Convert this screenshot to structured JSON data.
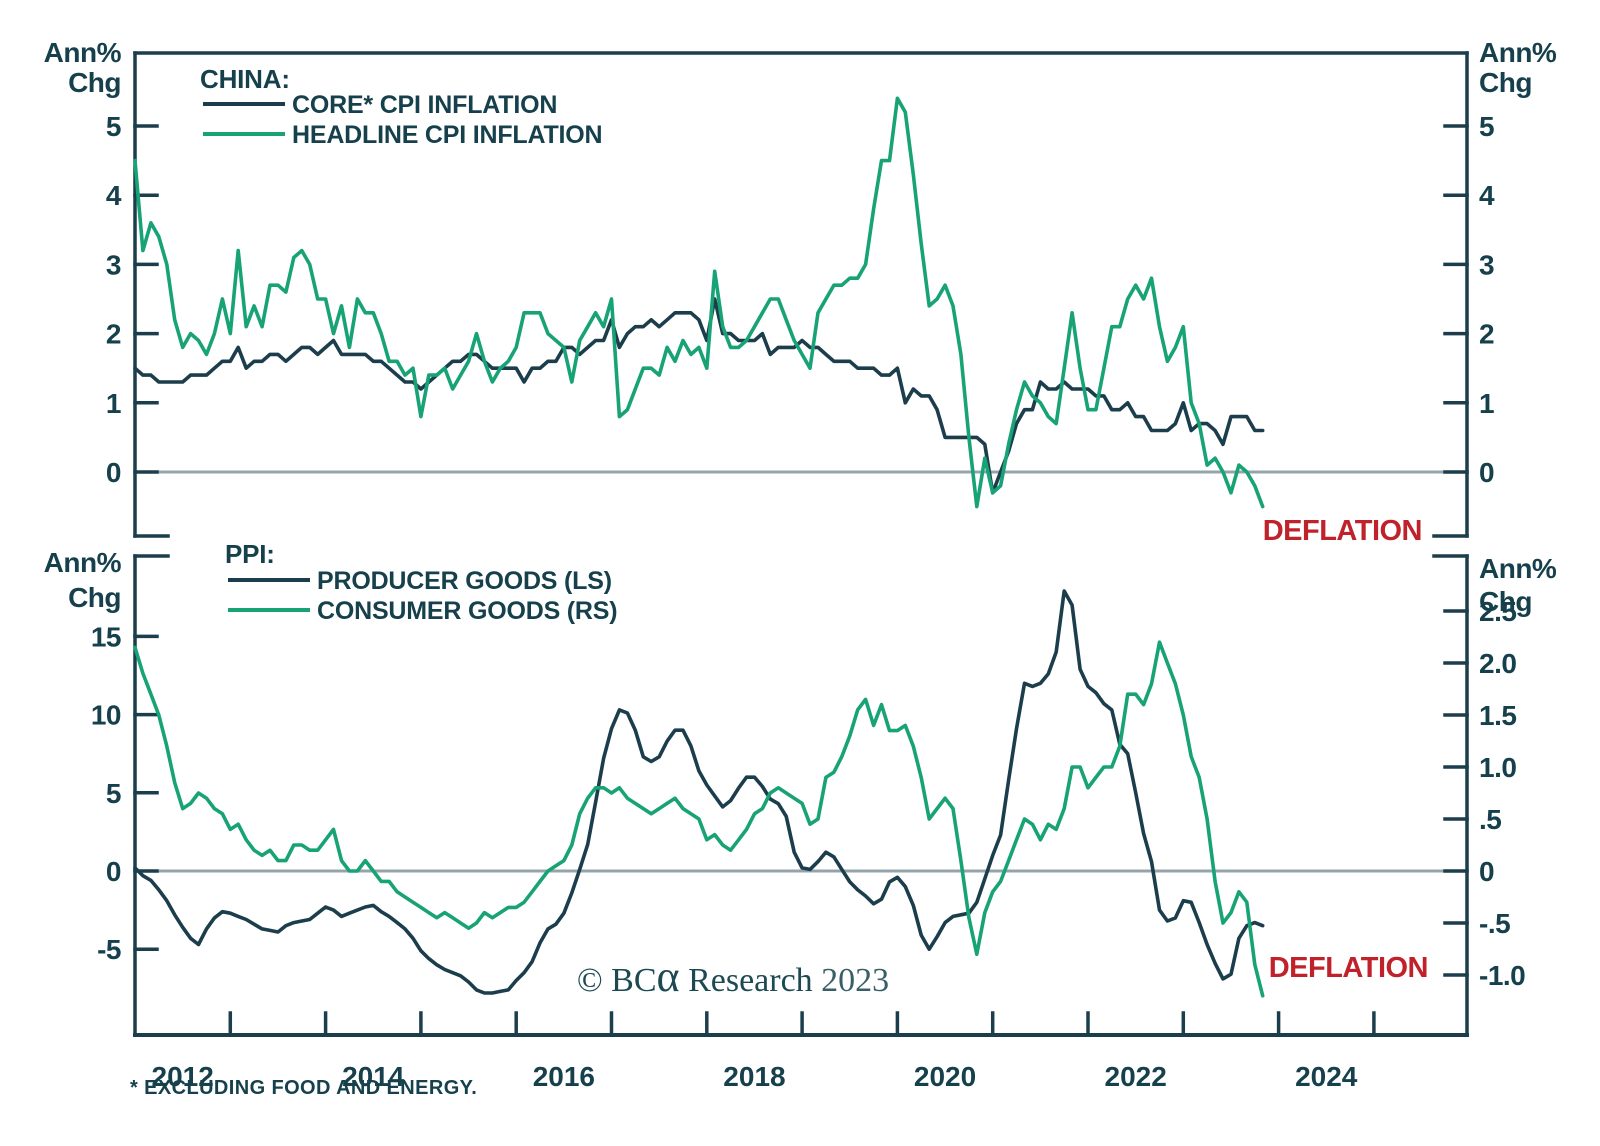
{
  "colors": {
    "dark": "#1C3E4C",
    "green": "#18A376",
    "red": "#C0222B",
    "grey_zero": "#95A4AB",
    "text": "#16404C",
    "watermark": "#1D4A52"
  },
  "top_panel": {
    "axis_left_title": [
      "Ann%",
      "Chg"
    ],
    "axis_right_title": [
      "Ann%",
      "Chg"
    ],
    "legend_title": "CHINA:",
    "deflation_label": "DEFLATION",
    "yticks": [
      {
        "label": "5",
        "value": 5
      },
      {
        "label": "4",
        "value": 4
      },
      {
        "label": "3",
        "value": 3
      },
      {
        "label": "2",
        "value": 2
      },
      {
        "label": "1",
        "value": 1
      },
      {
        "label": "0",
        "value": 0
      }
    ]
  },
  "bottom_panel": {
    "axis_left_title": [
      "Ann%",
      "Chg"
    ],
    "axis_right_title": [
      "Ann%",
      "Chg"
    ],
    "legend_title": "PPI:",
    "deflation_label": "DEFLATION",
    "watermark": {
      "prefix": "© BC",
      "alpha": "α",
      "rest": " Research ",
      "year": "2023"
    },
    "left_yticks": [
      {
        "label": "15",
        "value": 15
      },
      {
        "label": "10",
        "value": 10
      },
      {
        "label": "5",
        "value": 5
      },
      {
        "label": "0",
        "value": 0
      },
      {
        "label": "-5",
        "value": -5
      }
    ],
    "right_yticks": [
      {
        "label": "2.5",
        "value": 2.5
      },
      {
        "label": "2.0",
        "value": 2.0
      },
      {
        "label": "1.5",
        "value": 1.5
      },
      {
        "label": "1.0",
        "value": 1.0
      },
      {
        "label": ".5",
        "value": 0.5
      },
      {
        "label": "0",
        "value": 0
      },
      {
        "label": "-.5",
        "value": -0.5
      },
      {
        "label": "-1.0",
        "value": -1.0
      }
    ],
    "xtick_labels": [
      "2012",
      "2014",
      "2016",
      "2018",
      "2020",
      "2022",
      "2024"
    ]
  },
  "footnote": "* EXCLUDING FOOD AND ENERGY.",
  "chart_data": [
    {
      "type": "line",
      "title": "CHINA: CORE CPI INFLATION vs HEADLINE CPI INFLATION",
      "ylabel": "Ann% Chg",
      "x_start": "2012-01",
      "x_freq": "monthly",
      "xlim": [
        "2012-01",
        "2026-01"
      ],
      "ylim": [
        -0.8,
        6.05
      ],
      "yticks": [
        5,
        4,
        3,
        2,
        1,
        0
      ],
      "grid": "zero-line-only",
      "legend_position": "top-left",
      "annotations": [
        {
          "text": "DEFLATION",
          "position": "bottom-right",
          "color": "#C0222B"
        }
      ],
      "series": [
        {
          "name": "CORE* CPI INFLATION",
          "axis": "left",
          "color": "#1C3E4C",
          "values": [
            1.5,
            1.4,
            1.4,
            1.3,
            1.3,
            1.3,
            1.3,
            1.4,
            1.4,
            1.4,
            1.5,
            1.6,
            1.6,
            1.8,
            1.5,
            1.6,
            1.6,
            1.7,
            1.7,
            1.6,
            1.7,
            1.8,
            1.8,
            1.7,
            1.8,
            1.9,
            1.7,
            1.7,
            1.7,
            1.7,
            1.6,
            1.6,
            1.5,
            1.4,
            1.3,
            1.3,
            1.2,
            1.3,
            1.4,
            1.5,
            1.6,
            1.6,
            1.7,
            1.7,
            1.6,
            1.5,
            1.5,
            1.5,
            1.5,
            1.3,
            1.5,
            1.5,
            1.6,
            1.6,
            1.8,
            1.8,
            1.7,
            1.8,
            1.9,
            1.9,
            2.2,
            1.8,
            2.0,
            2.1,
            2.1,
            2.2,
            2.1,
            2.2,
            2.3,
            2.3,
            2.3,
            2.2,
            1.9,
            2.5,
            2.0,
            2.0,
            1.9,
            1.9,
            1.9,
            2.0,
            1.7,
            1.8,
            1.8,
            1.8,
            1.9,
            1.8,
            1.8,
            1.7,
            1.6,
            1.6,
            1.6,
            1.5,
            1.5,
            1.5,
            1.4,
            1.4,
            1.5,
            1.0,
            1.2,
            1.1,
            1.1,
            0.9,
            0.5,
            0.5,
            0.5,
            0.5,
            0.5,
            0.4,
            -0.3,
            0.0,
            0.3,
            0.7,
            0.9,
            0.9,
            1.3,
            1.2,
            1.2,
            1.3,
            1.2,
            1.2,
            1.2,
            1.1,
            1.1,
            0.9,
            0.9,
            1.0,
            0.8,
            0.8,
            0.6,
            0.6,
            0.6,
            0.7,
            1.0,
            0.6,
            0.7,
            0.7,
            0.6,
            0.4,
            0.8,
            0.8,
            0.8,
            0.6,
            0.6
          ]
        },
        {
          "name": "HEADLINE CPI INFLATION",
          "axis": "left",
          "color": "#18A376",
          "values": [
            4.5,
            3.2,
            3.6,
            3.4,
            3.0,
            2.2,
            1.8,
            2.0,
            1.9,
            1.7,
            2.0,
            2.5,
            2.0,
            3.2,
            2.1,
            2.4,
            2.1,
            2.7,
            2.7,
            2.6,
            3.1,
            3.2,
            3.0,
            2.5,
            2.5,
            2.0,
            2.4,
            1.8,
            2.5,
            2.3,
            2.3,
            2.0,
            1.6,
            1.6,
            1.4,
            1.5,
            0.8,
            1.4,
            1.4,
            1.5,
            1.2,
            1.4,
            1.6,
            2.0,
            1.6,
            1.3,
            1.5,
            1.6,
            1.8,
            2.3,
            2.3,
            2.3,
            2.0,
            1.9,
            1.8,
            1.3,
            1.9,
            2.1,
            2.3,
            2.1,
            2.5,
            0.8,
            0.9,
            1.2,
            1.5,
            1.5,
            1.4,
            1.8,
            1.6,
            1.9,
            1.7,
            1.8,
            1.5,
            2.9,
            2.1,
            1.8,
            1.8,
            1.9,
            2.1,
            2.3,
            2.5,
            2.5,
            2.2,
            1.9,
            1.7,
            1.5,
            2.3,
            2.5,
            2.7,
            2.7,
            2.8,
            2.8,
            3.0,
            3.8,
            4.5,
            4.5,
            5.4,
            5.2,
            4.3,
            3.3,
            2.4,
            2.5,
            2.7,
            2.4,
            1.7,
            0.5,
            -0.5,
            0.2,
            -0.3,
            -0.2,
            0.4,
            0.9,
            1.3,
            1.1,
            1.0,
            0.8,
            0.7,
            1.5,
            2.3,
            1.5,
            0.9,
            0.9,
            1.5,
            2.1,
            2.1,
            2.5,
            2.7,
            2.5,
            2.8,
            2.1,
            1.6,
            1.8,
            2.1,
            1.0,
            0.7,
            0.1,
            0.2,
            0.0,
            -0.3,
            0.1,
            0.0,
            -0.2,
            -0.5
          ]
        }
      ]
    },
    {
      "type": "line",
      "title": "PPI: PRODUCER GOODS (LS) vs CONSUMER GOODS (RS)",
      "ylabel_left": "Ann% Chg",
      "ylabel_right": "Ann% Chg",
      "x_start": "2012-01",
      "x_freq": "monthly",
      "xlim": [
        "2012-01",
        "2026-01"
      ],
      "ylim_left": [
        -10.5,
        20.1
      ],
      "ylim_right": [
        -1.58,
        3.0
      ],
      "yticks_left": [
        15,
        10,
        5,
        0,
        -5
      ],
      "yticks_right": [
        2.5,
        2.0,
        1.5,
        1.0,
        0.5,
        0,
        -0.5,
        -1.0
      ],
      "xticks": [
        2012,
        2014,
        2016,
        2018,
        2020,
        2022,
        2024
      ],
      "grid": "zero-line-only",
      "legend_position": "top-left",
      "annotations": [
        {
          "text": "DEFLATION",
          "position": "bottom-right",
          "color": "#C0222B"
        }
      ],
      "series": [
        {
          "name": "PRODUCER GOODS (LS)",
          "axis": "left",
          "color": "#1C3E4C",
          "values": [
            0.2,
            -0.3,
            -0.6,
            -1.2,
            -1.9,
            -2.8,
            -3.6,
            -4.3,
            -4.7,
            -3.7,
            -3.0,
            -2.6,
            -2.7,
            -2.9,
            -3.1,
            -3.4,
            -3.7,
            -3.8,
            -3.9,
            -3.5,
            -3.3,
            -3.2,
            -3.1,
            -2.7,
            -2.3,
            -2.5,
            -2.9,
            -2.7,
            -2.5,
            -2.3,
            -2.2,
            -2.6,
            -2.9,
            -3.3,
            -3.7,
            -4.3,
            -5.1,
            -5.6,
            -6.0,
            -6.3,
            -6.5,
            -6.7,
            -7.1,
            -7.6,
            -7.8,
            -7.8,
            -7.7,
            -7.6,
            -7.0,
            -6.5,
            -5.8,
            -4.6,
            -3.7,
            -3.4,
            -2.7,
            -1.4,
            0.1,
            1.7,
            4.4,
            7.2,
            9.1,
            10.3,
            10.1,
            9.0,
            7.3,
            7.0,
            7.3,
            8.3,
            9.0,
            9.0,
            8.0,
            6.4,
            5.5,
            4.8,
            4.1,
            4.5,
            5.3,
            6.0,
            6.0,
            5.4,
            4.6,
            4.3,
            3.5,
            1.2,
            0.2,
            0.1,
            0.6,
            1.2,
            0.9,
            0.1,
            -0.7,
            -1.2,
            -1.6,
            -2.1,
            -1.8,
            -0.7,
            -0.4,
            -1.0,
            -2.2,
            -4.1,
            -5.0,
            -4.2,
            -3.3,
            -2.9,
            -2.8,
            -2.7,
            -2.0,
            -0.5,
            1.0,
            2.3,
            5.8,
            9.1,
            12.0,
            11.8,
            12.0,
            12.6,
            14.0,
            17.9,
            17.0,
            12.9,
            11.8,
            11.4,
            10.7,
            10.3,
            8.1,
            7.5,
            5.0,
            2.4,
            0.6,
            -2.5,
            -3.2,
            -3.0,
            -1.9,
            -2.0,
            -3.3,
            -4.7,
            -5.9,
            -6.9,
            -6.6,
            -4.3,
            -3.5,
            -3.3,
            -3.5
          ]
        },
        {
          "name": "CONSUMER GOODS (RS)",
          "axis": "right",
          "color": "#18A376",
          "values": [
            2.15,
            1.9,
            1.7,
            1.5,
            1.2,
            0.85,
            0.6,
            0.65,
            0.75,
            0.7,
            0.6,
            0.55,
            0.4,
            0.45,
            0.3,
            0.2,
            0.15,
            0.2,
            0.1,
            0.1,
            0.25,
            0.25,
            0.2,
            0.2,
            0.3,
            0.4,
            0.1,
            0.0,
            0.0,
            0.1,
            0.0,
            -0.1,
            -0.1,
            -0.2,
            -0.25,
            -0.3,
            -0.35,
            -0.4,
            -0.45,
            -0.4,
            -0.45,
            -0.5,
            -0.55,
            -0.5,
            -0.4,
            -0.45,
            -0.4,
            -0.35,
            -0.35,
            -0.3,
            -0.2,
            -0.1,
            0.0,
            0.05,
            0.1,
            0.25,
            0.55,
            0.7,
            0.8,
            0.8,
            0.75,
            0.8,
            0.7,
            0.65,
            0.6,
            0.55,
            0.6,
            0.65,
            0.7,
            0.6,
            0.55,
            0.5,
            0.3,
            0.35,
            0.25,
            0.2,
            0.3,
            0.4,
            0.55,
            0.6,
            0.75,
            0.8,
            0.75,
            0.7,
            0.65,
            0.45,
            0.5,
            0.9,
            0.95,
            1.1,
            1.3,
            1.55,
            1.65,
            1.4,
            1.6,
            1.35,
            1.35,
            1.4,
            1.2,
            0.9,
            0.5,
            0.6,
            0.7,
            0.6,
            0.1,
            -0.45,
            -0.8,
            -0.4,
            -0.2,
            -0.1,
            0.1,
            0.3,
            0.5,
            0.45,
            0.3,
            0.45,
            0.4,
            0.6,
            1.0,
            1.0,
            0.8,
            0.9,
            1.0,
            1.0,
            1.2,
            1.7,
            1.7,
            1.6,
            1.8,
            2.2,
            2.0,
            1.8,
            1.5,
            1.1,
            0.9,
            0.5,
            -0.1,
            -0.5,
            -0.4,
            -0.2,
            -0.3,
            -0.9,
            -1.2
          ]
        }
      ]
    }
  ]
}
